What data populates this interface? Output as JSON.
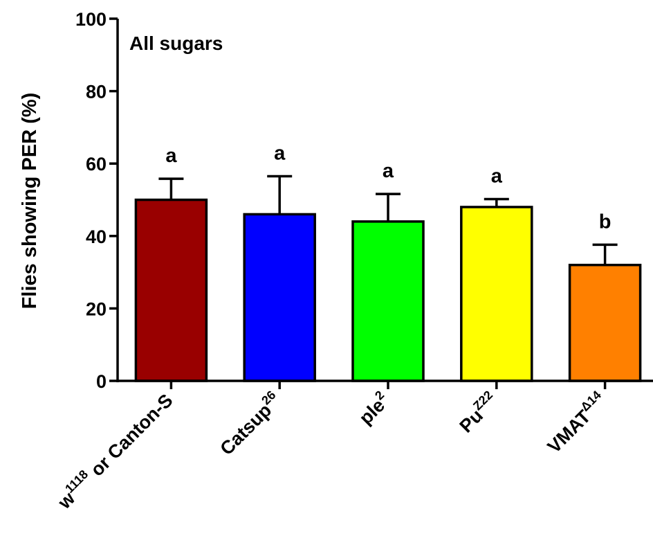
{
  "chart_data": {
    "type": "bar",
    "title": "All sugars",
    "ylabel": "Flies showing PER (%)",
    "xlabel": "",
    "ylim": [
      0,
      100
    ],
    "yticks": [
      0,
      20,
      40,
      60,
      80,
      100
    ],
    "categories": [
      {
        "base": "w",
        "sup": "1118",
        "suffix": " or Canton-S"
      },
      {
        "base": "Catsup",
        "sup": "26",
        "suffix": ""
      },
      {
        "base": "ple",
        "sup": "2",
        "suffix": ""
      },
      {
        "base": "Pu",
        "sup": "Z22",
        "suffix": ""
      },
      {
        "base": "VMAT",
        "sup": "Δ14",
        "suffix": ""
      }
    ],
    "values": [
      50,
      46,
      44,
      48,
      32
    ],
    "errors": [
      5.8,
      10.5,
      7.6,
      2.2,
      5.6
    ],
    "significance": [
      "a",
      "a",
      "a",
      "a",
      "b"
    ],
    "colors": [
      "#990000",
      "#0000ff",
      "#00ff00",
      "#ffff00",
      "#ff8000"
    ]
  }
}
